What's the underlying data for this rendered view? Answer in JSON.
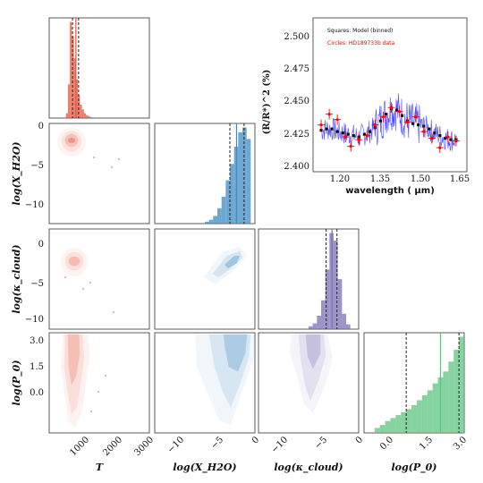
{
  "colors": {
    "T": "#e8533b",
    "water": "#3e8ac3",
    "cloud": "#7b6fb4",
    "pressure": "#5cc47f",
    "model": "#1a1aff",
    "data": "#ff0000"
  },
  "corner": {
    "labels": {
      "T": "T",
      "water": "log(X_H2O)",
      "cloud": "log(κ_cloud)",
      "pressure": "log(P_0)"
    },
    "ticks": {
      "T_x": [
        "1000",
        "2000",
        "3000"
      ],
      "water_y": [
        "0",
        "−5",
        "−10"
      ],
      "water_x": [
        "−10",
        "−5",
        "0"
      ],
      "cloud_y": [
        "0",
        "−5",
        "−10"
      ],
      "cloud_x": [
        "−10",
        "−5",
        "0"
      ],
      "pressure_y": [
        "3.0",
        "1.5",
        "0.0"
      ],
      "pressure_x": [
        "0.0",
        "1.5",
        "3.0"
      ]
    }
  },
  "chart_data": [
    {
      "type": "bar",
      "panel": "T marginal",
      "x_bins": [
        500,
        560,
        620,
        680,
        740,
        800,
        860,
        920,
        980,
        1040,
        1100,
        1160,
        1220
      ],
      "values": [
        0.05,
        0.35,
        1.0,
        0.85,
        0.62,
        0.4,
        0.24,
        0.14,
        0.09,
        0.05,
        0.03,
        0.02,
        0.01
      ],
      "xlim": [
        0,
        3000
      ],
      "markers": {
        "dashed": [
          700,
          880
        ],
        "solid": 800
      }
    },
    {
      "type": "bar",
      "panel": "log(X_H2O) marginal",
      "x_bins": [
        -6,
        -5.5,
        -5,
        -4.5,
        -4,
        -3.5,
        -3,
        -2.5,
        -2,
        -1.5,
        -1
      ],
      "values": [
        0.02,
        0.04,
        0.08,
        0.16,
        0.28,
        0.45,
        0.62,
        0.8,
        0.95,
        1.0,
        0.88
      ],
      "xlim": [
        -12,
        0
      ],
      "markers": {
        "dashed": [
          -3.0,
          -1.3
        ],
        "solid": -2.2
      }
    },
    {
      "type": "bar",
      "panel": "log(κ_cloud) marginal",
      "x_bins": [
        -6,
        -5.5,
        -5,
        -4.5,
        -4,
        -3.5,
        -3,
        -2.5,
        -2,
        -1.5
      ],
      "values": [
        0.03,
        0.06,
        0.14,
        0.3,
        0.62,
        1.0,
        0.92,
        0.52,
        0.16,
        0.05
      ],
      "xlim": [
        -12,
        0
      ],
      "markers": {
        "dashed": [
          -3.9,
          -2.6
        ],
        "solid": -3.2
      }
    },
    {
      "type": "bar",
      "panel": "log(P_0) marginal",
      "x_bins": [
        -0.4,
        -0.2,
        0.0,
        0.2,
        0.4,
        0.6,
        0.8,
        1.0,
        1.2,
        1.4,
        1.6,
        1.8,
        2.0,
        2.2,
        2.4,
        2.6,
        2.8
      ],
      "values": [
        0.05,
        0.08,
        0.12,
        0.15,
        0.18,
        0.21,
        0.24,
        0.28,
        0.33,
        0.38,
        0.43,
        0.5,
        0.56,
        0.62,
        0.72,
        0.84,
        0.97
      ],
      "xlim": [
        -0.8,
        3.0
      ],
      "markers": {
        "dashed": [
          0.8,
          2.8
        ],
        "solid": 2.1
      }
    },
    {
      "type": "line",
      "panel": "spectrum inset",
      "legend": [
        "Squares: Model (binned)",
        "Circles: HD189733b data"
      ],
      "xlabel": "wavelength ( μm)",
      "ylabel": "(R/R*)^2 (%)",
      "xlim": [
        1.1,
        1.67
      ],
      "ylim": [
        2.395,
        2.51
      ],
      "x_ticks": [
        "1.20",
        "1.35",
        "1.50",
        "1.65"
      ],
      "y_ticks": [
        "2.500",
        "2.475",
        "2.450",
        "2.425",
        "2.400"
      ],
      "series": [
        {
          "name": "Squares: Model (binned)",
          "x": [
            1.13,
            1.15,
            1.17,
            1.19,
            1.21,
            1.23,
            1.25,
            1.27,
            1.29,
            1.31,
            1.33,
            1.35,
            1.37,
            1.39,
            1.41,
            1.43,
            1.45,
            1.47,
            1.49,
            1.51,
            1.53,
            1.55,
            1.57,
            1.59,
            1.61,
            1.63
          ],
          "y": [
            2.426,
            2.427,
            2.427,
            2.425,
            2.424,
            2.423,
            2.422,
            2.421,
            2.423,
            2.425,
            2.428,
            2.433,
            2.438,
            2.442,
            2.441,
            2.437,
            2.433,
            2.431,
            2.43,
            2.429,
            2.427,
            2.424,
            2.422,
            2.42,
            2.419,
            2.419
          ]
        },
        {
          "name": "Circles: HD189733b data",
          "x": [
            1.13,
            1.16,
            1.19,
            1.22,
            1.24,
            1.27,
            1.3,
            1.33,
            1.36,
            1.39,
            1.42,
            1.45,
            1.48,
            1.51,
            1.54,
            1.57,
            1.6,
            1.63
          ],
          "y": [
            2.43,
            2.438,
            2.434,
            2.421,
            2.414,
            2.419,
            2.422,
            2.43,
            2.436,
            2.443,
            2.44,
            2.432,
            2.436,
            2.425,
            2.42,
            2.413,
            2.421,
            2.418
          ],
          "yerr": 0.004
        }
      ]
    }
  ]
}
